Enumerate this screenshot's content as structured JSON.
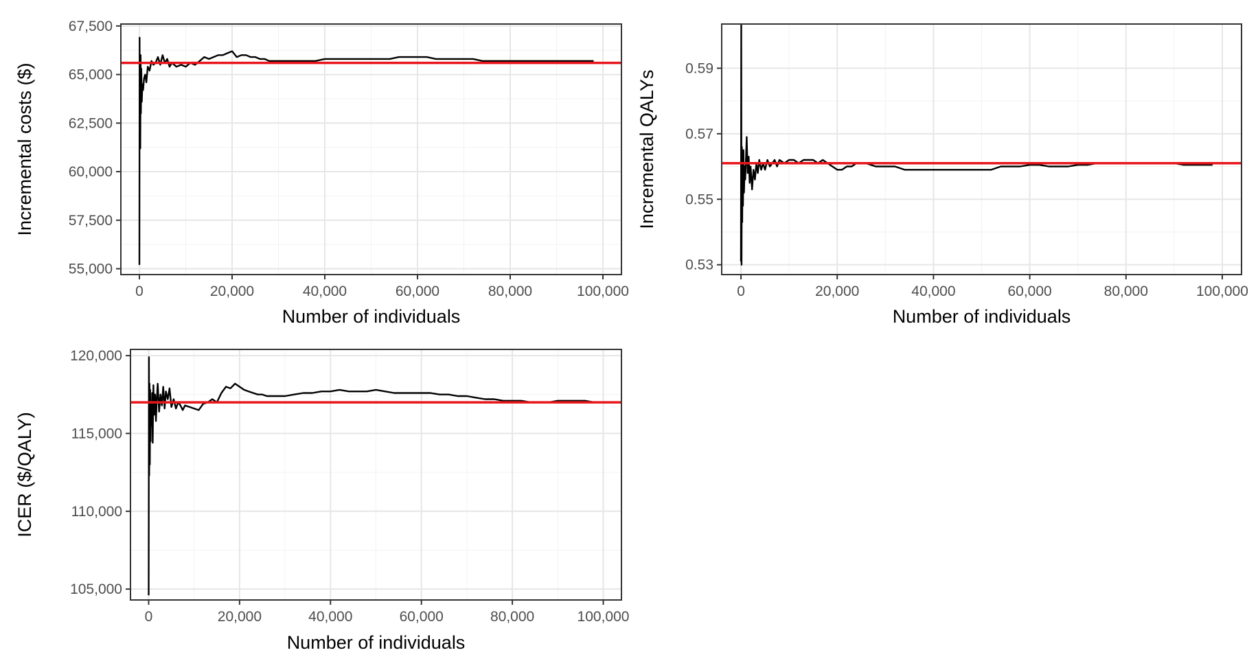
{
  "colors": {
    "trace": "#000000",
    "reference": "#e8151b",
    "grid_major": "#e6e6e6",
    "grid_minor": "#f2f2f2",
    "panel_border": "#333333"
  },
  "chart_data": [
    {
      "type": "line",
      "xlabel": "Number of individuals",
      "ylabel": "Incremental costs ($)",
      "xlim": [
        -4000,
        104000
      ],
      "ylim": [
        54700,
        67600
      ],
      "x_ticks": [
        0,
        20000,
        40000,
        60000,
        80000,
        100000
      ],
      "x_tick_labels": [
        "0",
        "20,000",
        "40,000",
        "60,000",
        "80,000",
        "100,000"
      ],
      "y_ticks": [
        55000,
        57500,
        60000,
        62500,
        65000,
        67500
      ],
      "y_tick_labels": [
        "55,000",
        "57,500",
        "60,000",
        "62,500",
        "65,000",
        "67,500"
      ],
      "grid": true,
      "reference_line": {
        "y": 65600
      },
      "series": [
        {
          "x": [
            0,
            40,
            80,
            120,
            200,
            260,
            330,
            420,
            520,
            650,
            800,
            1000,
            1250,
            1500,
            1800,
            2200,
            2600,
            3000,
            3500,
            4000,
            4500,
            5000,
            5500,
            6000,
            6500,
            7000,
            8000,
            9000,
            10000,
            11000,
            12000,
            13000,
            14000,
            15000,
            16000,
            17000,
            18000,
            19000,
            20000,
            21000,
            22000,
            23000,
            24000,
            25000,
            26000,
            27000,
            28000,
            30000,
            32000,
            34000,
            36000,
            38000,
            40000,
            42000,
            44000,
            46000,
            48000,
            50000,
            52000,
            54000,
            56000,
            58000,
            60000,
            62000,
            64000,
            66000,
            68000,
            70000,
            72000,
            74000,
            76000,
            78000,
            80000,
            82000,
            84000,
            86000,
            88000,
            90000,
            92000,
            94000,
            96000,
            98000
          ],
          "y": [
            55200,
            66900,
            62000,
            64800,
            61200,
            66000,
            63000,
            65300,
            63600,
            64500,
            64200,
            64800,
            65000,
            64600,
            65400,
            65200,
            65700,
            65500,
            65600,
            65900,
            65500,
            66000,
            65600,
            65800,
            65400,
            65600,
            65400,
            65500,
            65400,
            65600,
            65500,
            65700,
            65900,
            65800,
            65900,
            66000,
            66000,
            66100,
            66200,
            65900,
            66000,
            66000,
            65900,
            65900,
            65800,
            65800,
            65700,
            65700,
            65700,
            65700,
            65700,
            65700,
            65800,
            65800,
            65800,
            65800,
            65800,
            65800,
            65800,
            65800,
            65900,
            65900,
            65900,
            65900,
            65800,
            65800,
            65800,
            65800,
            65800,
            65700,
            65700,
            65700,
            65700,
            65700,
            65700,
            65700,
            65700,
            65700,
            65700,
            65700,
            65700,
            65700
          ]
        }
      ]
    },
    {
      "type": "line",
      "xlabel": "Number of individuals",
      "ylabel": "Incremental QALYs",
      "xlim": [
        -4000,
        104000
      ],
      "ylim": [
        0.527,
        0.6035
      ],
      "x_ticks": [
        0,
        20000,
        40000,
        60000,
        80000,
        100000
      ],
      "x_tick_labels": [
        "0",
        "20,000",
        "40,000",
        "60,000",
        "80,000",
        "100,000"
      ],
      "y_ticks": [
        0.53,
        0.55,
        0.57,
        0.59
      ],
      "y_tick_labels": [
        "0.53",
        "0.55",
        "0.57",
        "0.59"
      ],
      "grid": true,
      "reference_line": {
        "y": 0.561
      },
      "series": [
        {
          "x": [
            0,
            60,
            120,
            200,
            260,
            340,
            420,
            520,
            640,
            780,
            900,
            1050,
            1200,
            1400,
            1600,
            1800,
            2000,
            2300,
            2600,
            2900,
            3200,
            3500,
            3800,
            4200,
            4600,
            5000,
            5500,
            6000,
            6500,
            7000,
            7500,
            8000,
            9000,
            10000,
            11000,
            12000,
            13000,
            14000,
            15000,
            16000,
            17000,
            18000,
            19000,
            20000,
            21000,
            22000,
            23000,
            24000,
            25000,
            26000,
            28000,
            30000,
            32000,
            34000,
            36000,
            38000,
            40000,
            42000,
            44000,
            46000,
            48000,
            50000,
            52000,
            54000,
            56000,
            58000,
            60000,
            62000,
            64000,
            66000,
            68000,
            70000,
            72000,
            74000,
            76000,
            78000,
            80000,
            82000,
            84000,
            86000,
            88000,
            90000,
            92000,
            94000,
            96000,
            98000
          ],
          "y": [
            0.531,
            0.604,
            0.53,
            0.566,
            0.543,
            0.563,
            0.548,
            0.565,
            0.552,
            0.56,
            0.556,
            0.563,
            0.569,
            0.558,
            0.563,
            0.555,
            0.56,
            0.553,
            0.559,
            0.556,
            0.561,
            0.558,
            0.562,
            0.559,
            0.561,
            0.559,
            0.562,
            0.56,
            0.561,
            0.562,
            0.56,
            0.562,
            0.561,
            0.562,
            0.562,
            0.561,
            0.562,
            0.562,
            0.562,
            0.561,
            0.562,
            0.561,
            0.56,
            0.559,
            0.559,
            0.56,
            0.56,
            0.561,
            0.561,
            0.561,
            0.56,
            0.56,
            0.56,
            0.559,
            0.559,
            0.559,
            0.559,
            0.559,
            0.559,
            0.559,
            0.559,
            0.559,
            0.559,
            0.56,
            0.56,
            0.56,
            0.5605,
            0.5605,
            0.56,
            0.56,
            0.56,
            0.5605,
            0.5605,
            0.561,
            0.561,
            0.561,
            0.561,
            0.561,
            0.561,
            0.561,
            0.561,
            0.561,
            0.5605,
            0.5605,
            0.5605,
            0.5605
          ]
        }
      ]
    },
    {
      "type": "line",
      "xlabel": "Number of individuals",
      "ylabel": "ICER ($/QALY)",
      "xlim": [
        -4000,
        104000
      ],
      "ylim": [
        104300,
        120400
      ],
      "x_ticks": [
        0,
        20000,
        40000,
        60000,
        80000,
        100000
      ],
      "x_tick_labels": [
        "0",
        "20,000",
        "40,000",
        "60,000",
        "80,000",
        "100,000"
      ],
      "y_ticks": [
        105000,
        110000,
        115000,
        120000
      ],
      "y_tick_labels": [
        "105,000",
        "110,000",
        "115,000",
        "120,000"
      ],
      "grid": true,
      "reference_line": {
        "y": 117000
      },
      "series": [
        {
          "x": [
            0,
            60,
            120,
            200,
            260,
            340,
            420,
            520,
            640,
            780,
            900,
            1050,
            1200,
            1400,
            1600,
            1800,
            2000,
            2300,
            2600,
            2900,
            3200,
            3500,
            3800,
            4200,
            4600,
            5000,
            5500,
            6000,
            6500,
            7000,
            7500,
            8000,
            9000,
            10000,
            11000,
            12000,
            13000,
            14000,
            15000,
            16000,
            17000,
            18000,
            19000,
            20000,
            21000,
            22000,
            23000,
            24000,
            25000,
            26000,
            28000,
            30000,
            32000,
            34000,
            36000,
            38000,
            40000,
            42000,
            44000,
            46000,
            48000,
            50000,
            52000,
            54000,
            56000,
            58000,
            60000,
            62000,
            64000,
            66000,
            68000,
            70000,
            72000,
            74000,
            76000,
            78000,
            80000,
            82000,
            84000,
            86000,
            88000,
            90000,
            92000,
            94000,
            96000,
            98000
          ],
          "y": [
            104600,
            119900,
            112300,
            118200,
            113000,
            117800,
            114500,
            117000,
            115500,
            117600,
            114400,
            118100,
            116200,
            117500,
            115800,
            117300,
            118200,
            116400,
            117500,
            116800,
            118000,
            116600,
            117700,
            117200,
            117900,
            116700,
            117200,
            116600,
            117000,
            116800,
            116500,
            116800,
            116700,
            116600,
            116500,
            116900,
            117000,
            117200,
            117000,
            117600,
            118000,
            117900,
            118200,
            118000,
            117800,
            117700,
            117600,
            117500,
            117500,
            117400,
            117400,
            117400,
            117500,
            117600,
            117600,
            117700,
            117700,
            117800,
            117700,
            117700,
            117700,
            117800,
            117700,
            117600,
            117600,
            117600,
            117600,
            117600,
            117500,
            117500,
            117400,
            117400,
            117300,
            117200,
            117200,
            117100,
            117100,
            117100,
            117000,
            117000,
            117000,
            117100,
            117100,
            117100,
            117100,
            117000
          ]
        }
      ]
    }
  ]
}
